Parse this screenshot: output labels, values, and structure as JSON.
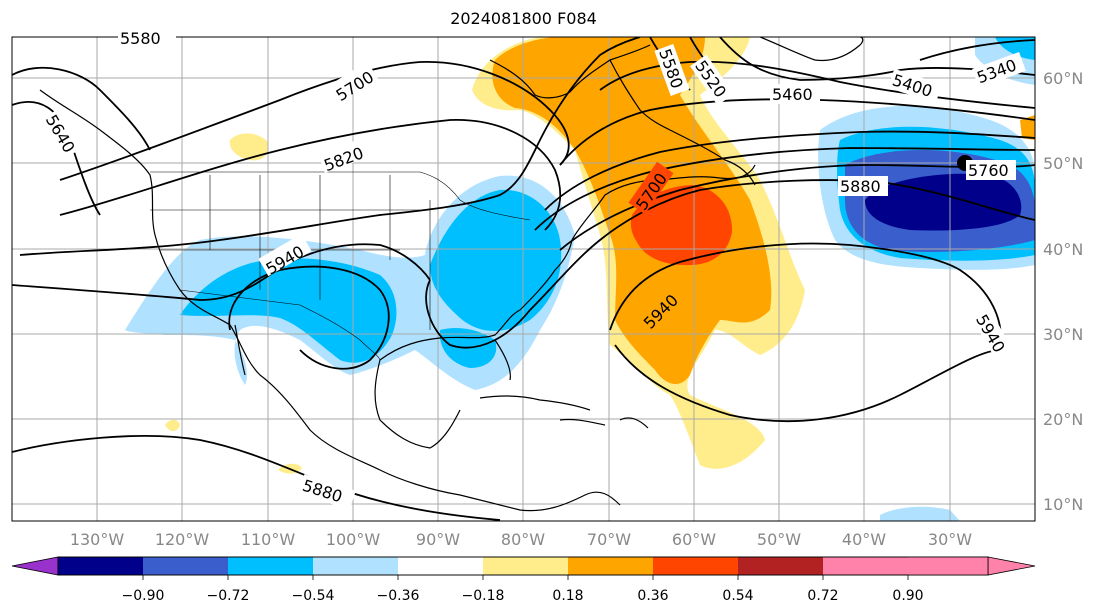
{
  "title": "2024081800 F084",
  "map": {
    "lon_labels": [
      "130°W",
      "120°W",
      "110°W",
      "100°W",
      "90°W",
      "80°W",
      "70°W",
      "60°W",
      "50°W",
      "40°W",
      "30°W"
    ],
    "lat_labels": [
      "60°N",
      "50°N",
      "40°N",
      "30°N",
      "20°N",
      "10°N"
    ],
    "contour_labels": [
      "5580",
      "5700",
      "5640",
      "5820",
      "5940",
      "5580",
      "5520",
      "5460",
      "5400",
      "5340",
      "5760",
      "5880",
      "5700",
      "5940",
      "5940",
      "5880"
    ],
    "marker": "black-dot"
  },
  "colorbar": {
    "ticks": [
      "−0.90",
      "−0.72",
      "−0.54",
      "−0.36",
      "−0.18",
      "0.18",
      "0.36",
      "0.54",
      "0.72",
      "0.90"
    ],
    "colors": [
      "#9932cc",
      "#00008b",
      "#3a5fcd",
      "#00bfff",
      "#b0e2ff",
      "#ffffff",
      "#ffec8b",
      "#ffa500",
      "#ff4500",
      "#b22222",
      "#ff82ab"
    ]
  }
}
